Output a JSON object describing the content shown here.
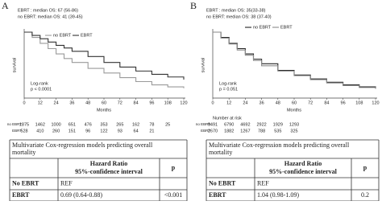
{
  "chart_data": [
    {
      "type": "line",
      "panel": "A",
      "notes": [
        "EBRT : median OS: 67 (56-86)",
        "no EBRT: median OS: 41 (39-45)"
      ],
      "test": [
        "Log-rank",
        "p < 0.0001"
      ],
      "y_label": "survival",
      "x_label": "Months",
      "x": [
        0,
        6,
        12,
        18,
        24,
        30,
        36,
        48,
        60,
        72,
        84,
        96,
        108,
        120
      ],
      "xlim": [
        0,
        120
      ],
      "xticks": [
        0,
        12,
        24,
        36,
        48,
        60,
        72,
        84,
        96,
        108,
        120
      ],
      "ylim": [
        0,
        1
      ],
      "series": [
        {
          "name": "no EBRT",
          "color": "#9a9a9a",
          "values": [
            1,
            0.92,
            0.83,
            0.75,
            0.67,
            0.6,
            0.54,
            0.45,
            0.38,
            0.31,
            0.25,
            0.2,
            0.17,
            0.15
          ]
        },
        {
          "name": "EBRT",
          "color": "#333333",
          "values": [
            1,
            0.95,
            0.9,
            0.85,
            0.8,
            0.76,
            0.71,
            0.63,
            0.54,
            0.47,
            0.41,
            0.36,
            0.32,
            0.28
          ]
        }
      ],
      "risk": {
        "rows": [
          {
            "label": "no EBRT",
            "values": [
              1875,
              1462,
              1000,
              651,
              476,
              353,
              265,
              162,
              78,
              25
            ]
          },
          {
            "label": "EBRT",
            "values": [
              528,
              410,
              260,
              151,
              96,
              122,
              93,
              64,
              21
            ]
          }
        ]
      }
    },
    {
      "type": "line",
      "panel": "B",
      "notes": [
        "EBRT : median OS: 35(33-38)",
        "no EBRT: median OS: 38 (37-40)"
      ],
      "test": [
        "Log-rank",
        "p = 0.051"
      ],
      "y_label": "survival",
      "x_label": "Months",
      "x": [
        0,
        6,
        12,
        18,
        24,
        30,
        36,
        48,
        60,
        72,
        84,
        96,
        108,
        120
      ],
      "xlim": [
        0,
        120
      ],
      "xticks": [
        0,
        12,
        24,
        36,
        48,
        60,
        72,
        84,
        96,
        108,
        120
      ],
      "ylim": [
        0,
        1
      ],
      "series": [
        {
          "name": "no EBRT",
          "color": "#222222",
          "values": [
            1,
            0.92,
            0.83,
            0.75,
            0.67,
            0.59,
            0.52,
            0.42,
            0.35,
            0.29,
            0.24,
            0.2,
            0.17,
            0.15
          ]
        },
        {
          "name": "EBRT",
          "color": "#8a8a8a",
          "values": [
            1,
            0.91,
            0.82,
            0.73,
            0.65,
            0.57,
            0.49,
            0.41,
            0.34,
            0.28,
            0.23,
            0.19,
            0.16,
            0.14
          ]
        }
      ],
      "risk": {
        "title": "Number at risk",
        "rows": [
          {
            "label": "no EBRT",
            "values": [
              9491,
              6790,
              4692,
              2922,
              1929,
              1293
            ]
          },
          {
            "label": "EBRT",
            "values": [
              2670,
              1882,
              1267,
              788,
              535,
              325
            ]
          }
        ]
      }
    }
  ],
  "tables": [
    {
      "title": [
        "Multivariate Cox-regression models predicting overall",
        "mortality"
      ],
      "hr_header": [
        "Hazard Ratio",
        "95%-confidence interval"
      ],
      "p_header": "p",
      "rows": [
        [
          "No EBRT",
          "REF"
        ],
        [
          "EBRT",
          "0.69 (0.64-0.88)",
          "<0.001"
        ]
      ]
    },
    {
      "title": [
        "Multivariate Cox-regression models predicting overall",
        "mortality"
      ],
      "hr_header": [
        "Hazard Ratio",
        "95%-confidence interval"
      ],
      "p_header": "p",
      "rows": [
        [
          "No EBRT",
          "REF"
        ],
        [
          "EBRT",
          "1.04 (0.98-1.09)",
          "0.2"
        ]
      ]
    }
  ]
}
